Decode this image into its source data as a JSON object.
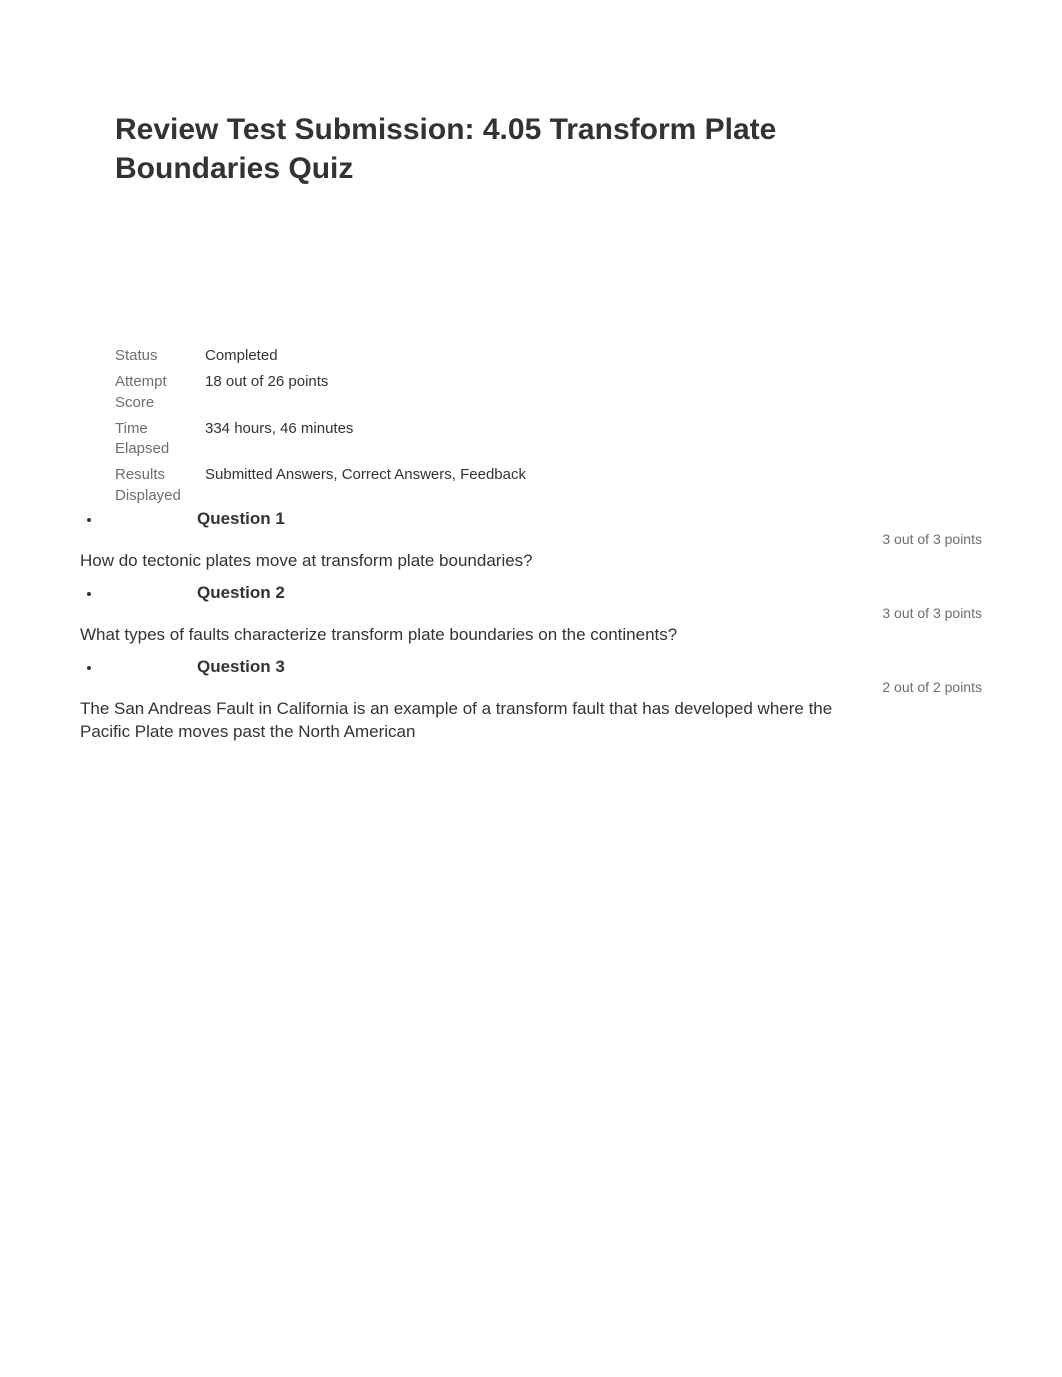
{
  "header": {
    "title": "Review Test Submission: 4.05 Transform Plate Boundaries Quiz"
  },
  "info": {
    "status_label": "Status",
    "status_value": "Completed",
    "attempt_label": "Attempt Score",
    "attempt_value": "18 out of 26 points",
    "time_label": "Time Elapsed",
    "time_value": "334 hours, 46 minutes",
    "results_label": "Results Displayed",
    "results_value": "Submitted Answers, Correct Answers, Feedback"
  },
  "questions": [
    {
      "title": "Question 1",
      "score": "3 out of 3 points",
      "text": "How do tectonic plates move at transform plate boundaries?"
    },
    {
      "title": "Question 2",
      "score": "3 out of 3 points",
      "text": "What types of faults characterize transform plate boundaries on the continents?"
    },
    {
      "title": "Question 3",
      "score": "2 out of 2 points",
      "text": "The San Andreas Fault in California is an example of a transform fault that has developed where the Pacific Plate moves past the North American"
    }
  ],
  "style": {
    "text_color": "#333333",
    "muted_color": "#6e6e6e",
    "background_color": "#ffffff",
    "title_fontsize": 30,
    "body_fontsize": 17,
    "info_fontsize": 15,
    "score_fontsize": 14
  }
}
